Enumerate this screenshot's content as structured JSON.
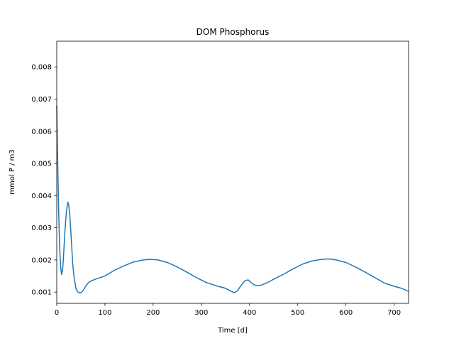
{
  "chart_data": {
    "type": "line",
    "title": "DOM Phosphorus",
    "xlabel": "Time [d]",
    "ylabel": "mmol P / m3",
    "xlim": [
      0,
      730
    ],
    "ylim": [
      0.00065,
      0.0088
    ],
    "xticks": [
      0,
      100,
      200,
      300,
      400,
      500,
      600,
      700
    ],
    "yticks": [
      0.001,
      0.002,
      0.003,
      0.004,
      0.005,
      0.006,
      0.007,
      0.008
    ],
    "ytick_labels": [
      "0.001",
      "0.002",
      "0.003",
      "0.004",
      "0.005",
      "0.006",
      "0.007",
      "0.008"
    ],
    "grid": false,
    "legend": "none",
    "series": [
      {
        "color": "#1f77b4",
        "x": [
          0,
          2,
          4,
          6,
          8,
          10,
          12,
          14,
          17,
          20,
          23,
          25,
          27,
          30,
          33,
          36,
          40,
          44,
          48,
          52,
          56,
          60,
          65,
          70,
          80,
          90,
          100,
          120,
          140,
          160,
          180,
          195,
          210,
          230,
          250,
          270,
          290,
          310,
          330,
          350,
          360,
          368,
          375,
          382,
          390,
          397,
          403,
          410,
          418,
          425,
          435,
          450,
          470,
          490,
          510,
          530,
          550,
          565,
          580,
          600,
          620,
          640,
          660,
          680,
          700,
          715,
          730
        ],
        "y": [
          0.0068,
          0.005,
          0.0035,
          0.0024,
          0.0018,
          0.00155,
          0.00165,
          0.0021,
          0.0029,
          0.0035,
          0.0038,
          0.0037,
          0.0034,
          0.0027,
          0.0019,
          0.00145,
          0.0011,
          0.001,
          0.00098,
          0.001,
          0.00108,
          0.00118,
          0.00128,
          0.00134,
          0.0014,
          0.00145,
          0.0015,
          0.00168,
          0.00182,
          0.00194,
          0.002,
          0.00202,
          0.002,
          0.00192,
          0.00178,
          0.00162,
          0.00145,
          0.0013,
          0.0012,
          0.00112,
          0.00104,
          0.00098,
          0.00104,
          0.0012,
          0.00135,
          0.00138,
          0.0013,
          0.00122,
          0.0012,
          0.00122,
          0.00128,
          0.0014,
          0.00155,
          0.00172,
          0.00187,
          0.00197,
          0.00202,
          0.00203,
          0.002,
          0.00192,
          0.00178,
          0.00162,
          0.00145,
          0.00128,
          0.00118,
          0.00112,
          0.00102
        ]
      }
    ]
  }
}
